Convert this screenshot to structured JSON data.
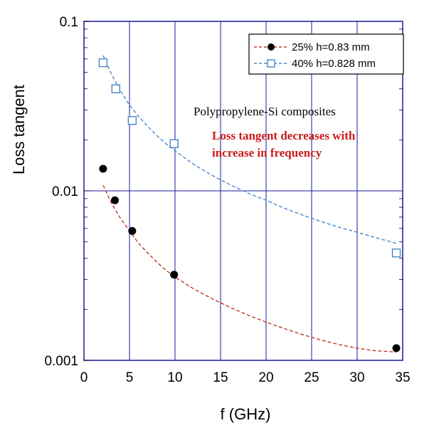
{
  "chart_data": {
    "type": "scatter",
    "xlabel": "f (GHz)",
    "ylabel": "Loss tangent",
    "xlim": [
      0,
      35
    ],
    "ylim": [
      0.001,
      0.1
    ],
    "yscale": "log",
    "x_ticks": [
      0,
      5,
      10,
      15,
      20,
      25,
      30,
      35
    ],
    "x_tick_labels": [
      "0",
      "5",
      "10",
      "15",
      "20",
      "25",
      "30",
      "35"
    ],
    "y_ticks": [
      0.001,
      0.01,
      0.1
    ],
    "y_tick_labels": [
      "0.001",
      "0.01",
      "0.1"
    ],
    "grid": true,
    "legend_position": "top-right",
    "series": [
      {
        "name": "25% h=0.83 mm",
        "marker": "filled-circle",
        "color": "#000000",
        "fit_color": "#c0392b",
        "x": [
          2.1,
          3.4,
          5.3,
          9.9,
          34.3
        ],
        "y": [
          0.0135,
          0.0088,
          0.0058,
          0.0032,
          0.00118
        ],
        "fit_x": [
          2.1,
          3,
          4,
          5,
          6,
          7,
          8,
          9,
          10,
          12,
          14,
          16,
          18,
          20,
          22,
          24,
          26,
          28,
          30,
          32,
          34.3
        ],
        "fit_y": [
          0.0108,
          0.0085,
          0.0069,
          0.0058,
          0.0049,
          0.0043,
          0.0038,
          0.0034,
          0.0031,
          0.00265,
          0.00232,
          0.00206,
          0.00185,
          0.00168,
          0.00154,
          0.00142,
          0.00132,
          0.00124,
          0.00118,
          0.00114,
          0.00112
        ]
      },
      {
        "name": "40% h=0.828 mm",
        "marker": "open-square",
        "color": "#4a86c8",
        "fit_color": "#4a86c8",
        "x": [
          2.1,
          3.5,
          5.3,
          9.9,
          34.3
        ],
        "y": [
          0.057,
          0.04,
          0.026,
          0.019,
          0.0043
        ],
        "fit_x": [
          2.1,
          3,
          4,
          5,
          6,
          7,
          8,
          9,
          10,
          12,
          14,
          16,
          18,
          20,
          22,
          24,
          26,
          28,
          30,
          32,
          34.3
        ],
        "fit_y": [
          0.063,
          0.049,
          0.039,
          0.032,
          0.0275,
          0.024,
          0.0212,
          0.019,
          0.0172,
          0.0144,
          0.0124,
          0.0109,
          0.0097,
          0.0088,
          0.0079,
          0.0072,
          0.0066,
          0.0061,
          0.0057,
          0.0053,
          0.0049
        ]
      }
    ],
    "annotations": [
      {
        "text": "Polypropylene-Si composites",
        "color": "#000000"
      },
      {
        "line1": "Loss tangent decreases with",
        "line2": "increase in frequency",
        "color": "#cc1a1a"
      }
    ]
  }
}
